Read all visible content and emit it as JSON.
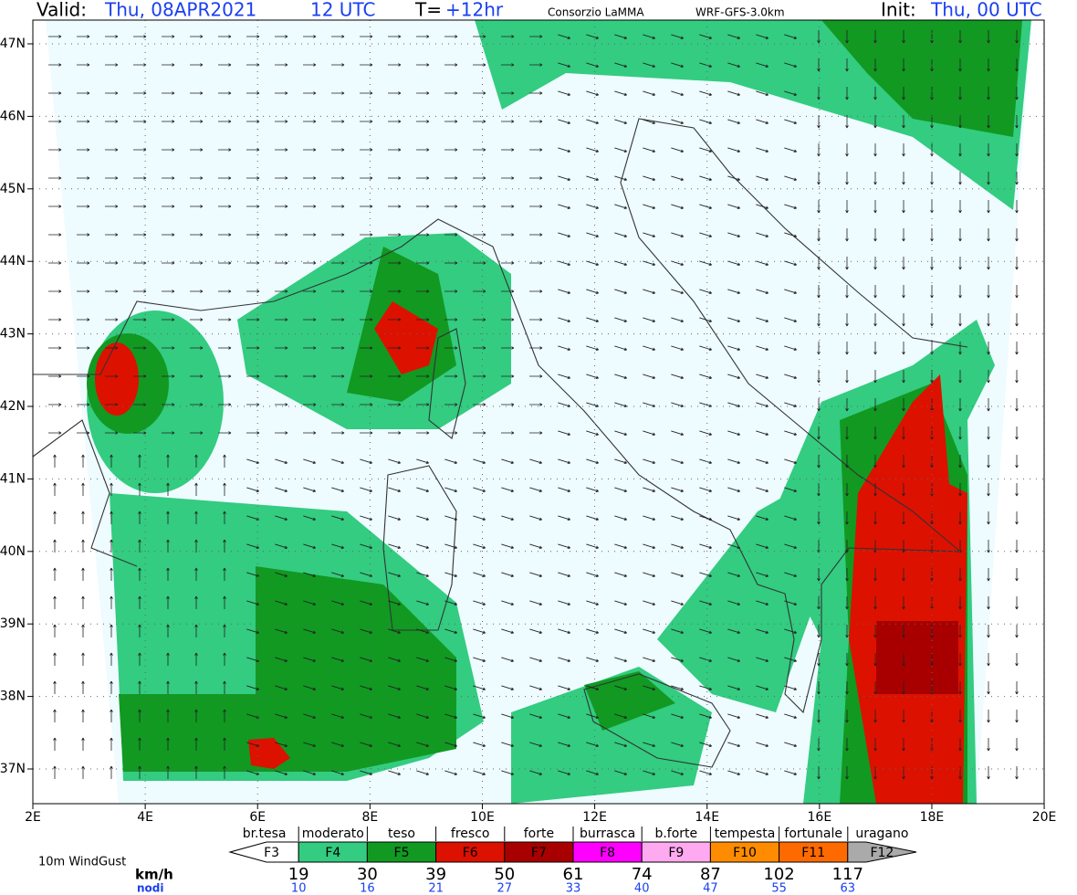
{
  "header": {
    "valid_label": "Valid:",
    "valid_date": "Thu, 08APR2021",
    "valid_time": "12 UTC",
    "t_label": "T=",
    "t_value": "+12hr",
    "producer": "Consorzio LaMMA",
    "model": "WRF-GFS-3.0km",
    "init_label": "Init:",
    "init_value": "Thu, 00 UTC"
  },
  "map": {
    "lon_ticks": [
      {
        "value": 2,
        "label": "2E"
      },
      {
        "value": 4,
        "label": "4E"
      },
      {
        "value": 6,
        "label": "6E"
      },
      {
        "value": 8,
        "label": "8E"
      },
      {
        "value": 10,
        "label": "10E"
      },
      {
        "value": 12,
        "label": "12E"
      },
      {
        "value": 14,
        "label": "14E"
      },
      {
        "value": 16,
        "label": "16E"
      },
      {
        "value": 18,
        "label": "18E"
      },
      {
        "value": 20,
        "label": "20E"
      }
    ],
    "lat_ticks": [
      {
        "value": 47,
        "label": "47N"
      },
      {
        "value": 46,
        "label": "46N"
      },
      {
        "value": 45,
        "label": "45N"
      },
      {
        "value": 44,
        "label": "44N"
      },
      {
        "value": 43,
        "label": "43N"
      },
      {
        "value": 42,
        "label": "42N"
      },
      {
        "value": 41,
        "label": "41N"
      },
      {
        "value": 40,
        "label": "40N"
      },
      {
        "value": 39,
        "label": "39N"
      },
      {
        "value": 38,
        "label": "38N"
      },
      {
        "value": 37,
        "label": "37N"
      }
    ]
  },
  "legend": {
    "field": "10m WindGust",
    "unit_kmh": "km/h",
    "unit_knots": "nodi",
    "classes": [
      {
        "name": "br.tesa",
        "code": "F3",
        "color": "#ffffff"
      },
      {
        "name": "moderato",
        "code": "F4",
        "color": "#33cc80"
      },
      {
        "name": "teso",
        "code": "F5",
        "color": "#119922"
      },
      {
        "name": "fresco",
        "code": "F6",
        "color": "#dd1100"
      },
      {
        "name": "forte",
        "code": "F7",
        "color": "#a80000"
      },
      {
        "name": "burrasca",
        "code": "F8",
        "color": "#ff00ff"
      },
      {
        "name": "b.forte",
        "code": "F9",
        "color": "#ffaaf0"
      },
      {
        "name": "tempesta",
        "code": "F10",
        "color": "#ff8c00"
      },
      {
        "name": "fortunale",
        "code": "F11",
        "color": "#ff6a00"
      },
      {
        "name": "uragano",
        "code": "F12",
        "color": "#aaaaaa"
      }
    ],
    "kmh": [
      19,
      30,
      39,
      50,
      61,
      74,
      87,
      102,
      117
    ],
    "knots": [
      10,
      16,
      21,
      27,
      33,
      40,
      47,
      55,
      63
    ]
  }
}
